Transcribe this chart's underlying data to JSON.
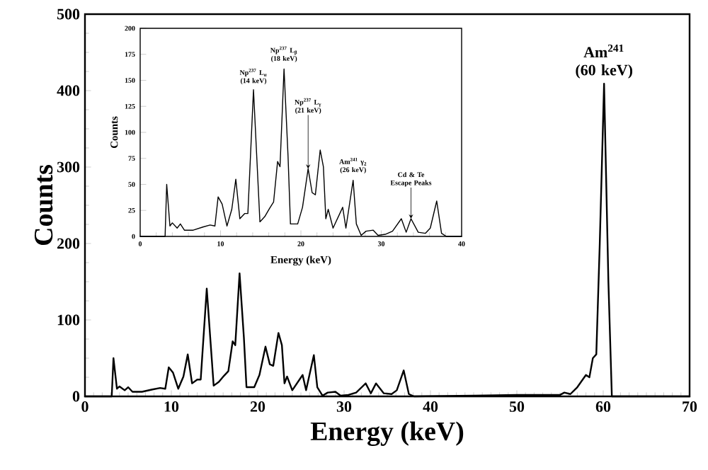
{
  "chart_data": [
    {
      "type": "line",
      "xlabel": "Energy (keV)",
      "ylabel": "Counts",
      "xlim": [
        0,
        70
      ],
      "ylim": [
        0,
        500
      ],
      "xticks": [
        0,
        10,
        20,
        30,
        40,
        50,
        60,
        70
      ],
      "yticks": [
        0,
        100,
        200,
        300,
        400,
        500
      ],
      "annotations": [
        {
          "text": "Am$^{241}$ (60 keV)",
          "x": 60.1,
          "y": 409
        }
      ],
      "series": [
        {
          "color": "#000000",
          "x": [
            0,
            3.1,
            3.3,
            3.7,
            4.0,
            4.6,
            5.0,
            5.5,
            6.6,
            7.8,
            8.7,
            9.3,
            9.7,
            10.2,
            10.8,
            11.4,
            11.9,
            12.4,
            13.0,
            13.4,
            14.1,
            14.9,
            15.5,
            16.1,
            16.6,
            17.1,
            17.4,
            17.9,
            18.4,
            18.7,
            19.6,
            20.2,
            20.9,
            21.4,
            21.8,
            22.4,
            22.8,
            23.1,
            23.4,
            24.0,
            25.2,
            25.6,
            26.5,
            26.9,
            27.5,
            28.1,
            29.0,
            29.6,
            30.5,
            31.4,
            32.5,
            33.1,
            33.7,
            34.6,
            35.5,
            36.1,
            36.9,
            37.5,
            38.1,
            45,
            50,
            55,
            55.5,
            56.2,
            57.0,
            57.5,
            58.0,
            58.4,
            58.8,
            59.2,
            59.6,
            60.1,
            60.6,
            61.0,
            70
          ],
          "values": [
            0,
            0,
            50,
            10,
            13,
            8,
            12,
            6,
            6,
            9,
            11,
            10,
            38,
            31,
            10,
            26,
            55,
            17,
            22,
            22,
            141,
            14,
            19,
            27,
            33,
            72,
            67,
            161,
            77,
            12,
            12,
            28,
            65,
            42,
            40,
            83,
            67,
            17,
            26,
            8,
            28,
            8,
            54,
            12,
            1,
            5,
            6,
            1,
            2,
            5,
            17,
            4,
            17,
            4,
            3,
            8,
            34,
            3,
            0,
            1,
            2,
            2,
            5,
            3,
            12,
            20,
            28,
            25,
            50,
            55,
            200,
            409,
            150,
            0,
            0
          ]
        }
      ]
    },
    {
      "type": "line",
      "xlabel": "Energy (keV)",
      "ylabel": "Counts",
      "xlim": [
        0,
        40
      ],
      "ylim": [
        0,
        200
      ],
      "xticks": [
        0,
        10,
        20,
        30,
        40
      ],
      "yticks": [
        0,
        25,
        50,
        75,
        100,
        125,
        150,
        175,
        200
      ],
      "annotations": [
        {
          "text": "Np$^{237}$ L$_{α}$ (14 keV)",
          "x": 14.1,
          "y": 141
        },
        {
          "text": "Np$^{237}$ L$_{β}$ (18 keV)",
          "x": 17.9,
          "y": 161
        },
        {
          "text": "Np$^{237}$ L$_{γ}$ (21 keV)",
          "x": 20.9,
          "y": 65
        },
        {
          "text": "Am$^{241}$ γ$_{2}$ (26 keV)",
          "x": 26.5,
          "y": 54
        },
        {
          "text": "Cd & Te Escape Peaks",
          "x": 33.7,
          "y": 17
        }
      ],
      "series": [
        {
          "color": "#000000",
          "x": [
            0,
            3.1,
            3.3,
            3.7,
            4.0,
            4.6,
            5.0,
            5.5,
            6.6,
            7.8,
            8.7,
            9.3,
            9.7,
            10.2,
            10.8,
            11.4,
            11.9,
            12.4,
            13.0,
            13.4,
            14.1,
            14.9,
            15.5,
            16.1,
            16.6,
            17.1,
            17.4,
            17.9,
            18.4,
            18.7,
            19.6,
            20.2,
            20.9,
            21.4,
            21.8,
            22.4,
            22.8,
            23.1,
            23.4,
            24.0,
            25.2,
            25.6,
            26.5,
            26.9,
            27.5,
            28.1,
            29.0,
            29.6,
            30.5,
            31.4,
            32.5,
            33.1,
            33.7,
            34.6,
            35.5,
            36.1,
            36.9,
            37.5,
            38.1,
            40
          ],
          "values": [
            0,
            0,
            50,
            10,
            13,
            8,
            12,
            6,
            6,
            9,
            11,
            10,
            38,
            31,
            10,
            26,
            55,
            17,
            22,
            22,
            141,
            14,
            19,
            27,
            33,
            72,
            67,
            161,
            77,
            12,
            12,
            28,
            65,
            42,
            40,
            83,
            67,
            17,
            26,
            8,
            28,
            8,
            54,
            12,
            1,
            5,
            6,
            1,
            2,
            5,
            17,
            4,
            17,
            4,
            3,
            8,
            34,
            3,
            0,
            0
          ]
        }
      ]
    }
  ]
}
